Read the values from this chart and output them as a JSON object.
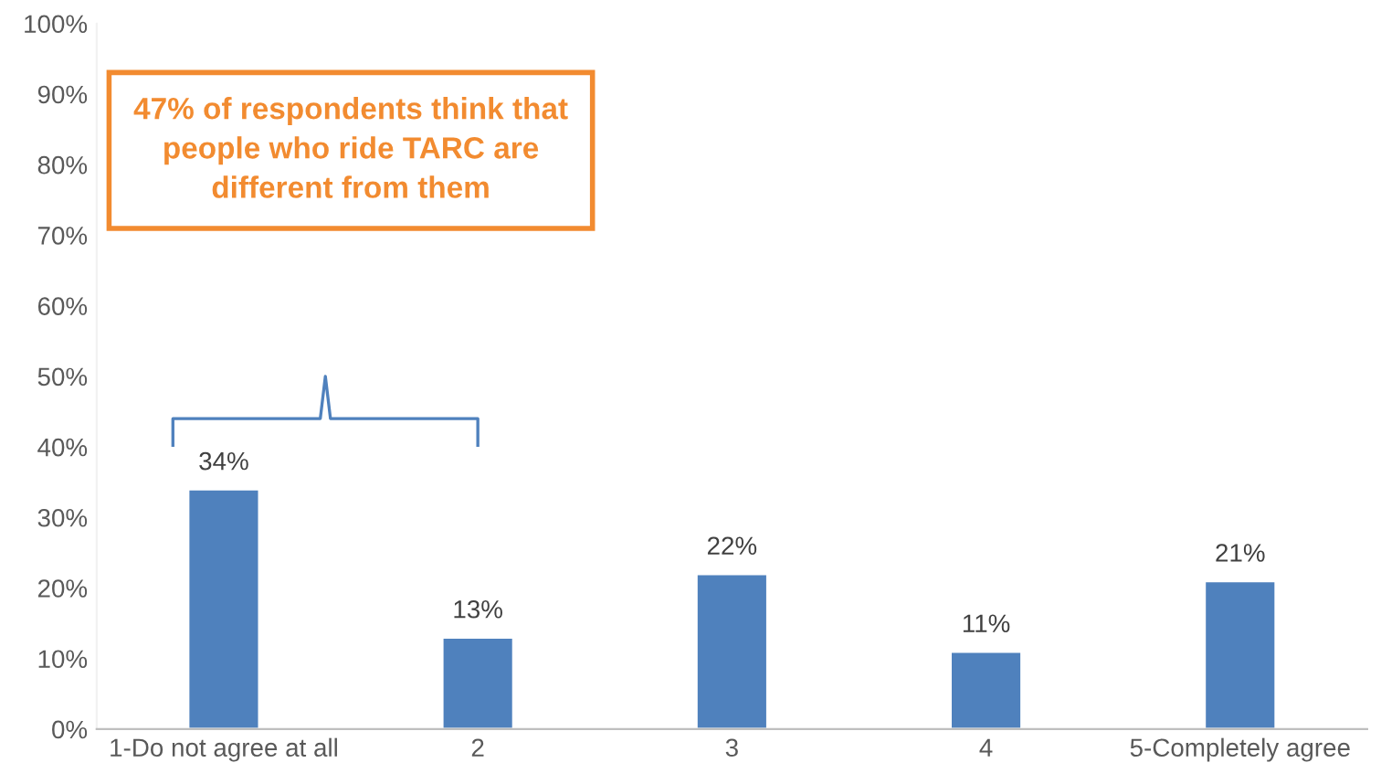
{
  "chart_data": {
    "type": "bar",
    "categories": [
      "1-Do not agree at all",
      "2",
      "3",
      "4",
      "5-Completely agree"
    ],
    "values": [
      34,
      13,
      22,
      11,
      21
    ],
    "color": "#4f81bd",
    "value_labels": [
      "34%",
      "13%",
      "22%",
      "11%",
      "21%"
    ],
    "ylim": [
      0,
      100
    ],
    "yticks": [
      {
        "value": 0,
        "label": "0%"
      },
      {
        "value": 10,
        "label": "10%"
      },
      {
        "value": 20,
        "label": "20%"
      },
      {
        "value": 30,
        "label": "30%"
      },
      {
        "value": 40,
        "label": "40%"
      },
      {
        "value": 50,
        "label": "50%"
      },
      {
        "value": 60,
        "label": "60%"
      },
      {
        "value": 70,
        "label": "70%"
      },
      {
        "value": 80,
        "label": "80%"
      },
      {
        "value": 90,
        "label": "90%"
      },
      {
        "value": 100,
        "label": "100%"
      }
    ],
    "grid": false,
    "annotations": [
      "47% of respondents think that\npeople who ride TARC are\ndifferent from them"
    ]
  }
}
